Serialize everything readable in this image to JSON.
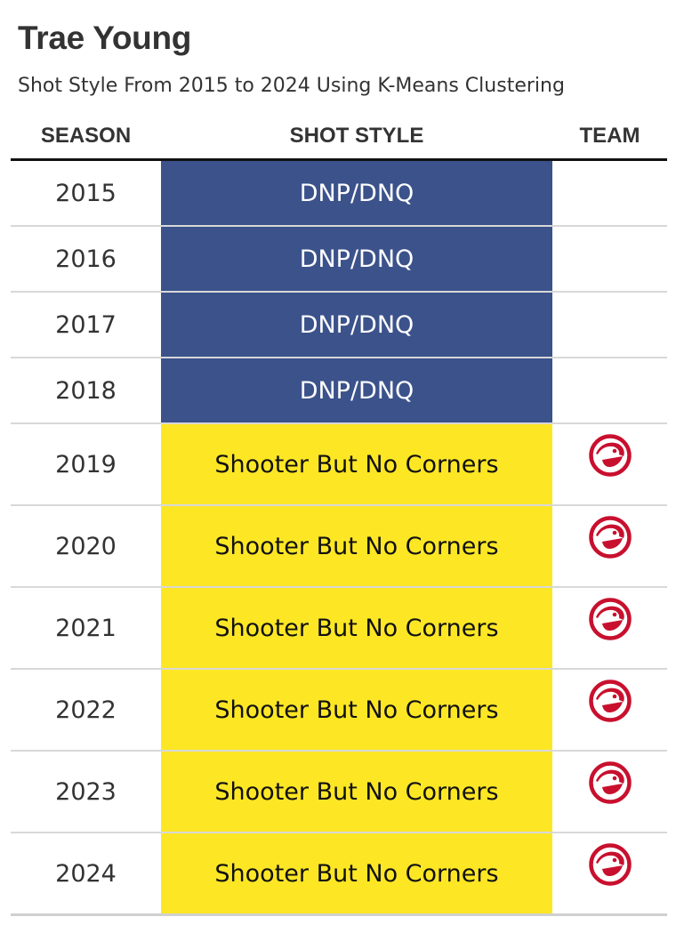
{
  "title": "Trae Young",
  "subtitle": "Shot Style From 2015 to 2024 Using K-Means Clustering",
  "chart_data": {
    "type": "table",
    "columns": [
      "SEASON",
      "SHOT STYLE",
      "TEAM"
    ],
    "rows": [
      {
        "season": "2015",
        "shot_style": "DNP/DNQ",
        "team_logo": ""
      },
      {
        "season": "2016",
        "shot_style": "DNP/DNQ",
        "team_logo": ""
      },
      {
        "season": "2017",
        "shot_style": "DNP/DNQ",
        "team_logo": ""
      },
      {
        "season": "2018",
        "shot_style": "DNP/DNQ",
        "team_logo": ""
      },
      {
        "season": "2019",
        "shot_style": "Shooter But No Corners",
        "team_logo": "hawks-logo-icon"
      },
      {
        "season": "2020",
        "shot_style": "Shooter But No Corners",
        "team_logo": "hawks-logo-icon"
      },
      {
        "season": "2021",
        "shot_style": "Shooter But No Corners",
        "team_logo": "hawks-logo-icon"
      },
      {
        "season": "2022",
        "shot_style": "Shooter But No Corners",
        "team_logo": "hawks-logo-icon"
      },
      {
        "season": "2023",
        "shot_style": "Shooter But No Corners",
        "team_logo": "hawks-logo-icon"
      },
      {
        "season": "2024",
        "shot_style": "Shooter But No Corners",
        "team_logo": "hawks-logo-icon"
      }
    ],
    "style_colors": {
      "DNP/DNQ": {
        "bg": "#3b528b",
        "fg": "#ffffff"
      },
      "Shooter But No Corners": {
        "bg": "#fde725",
        "fg": "#111111"
      }
    },
    "logo_color": "#c8102e"
  }
}
